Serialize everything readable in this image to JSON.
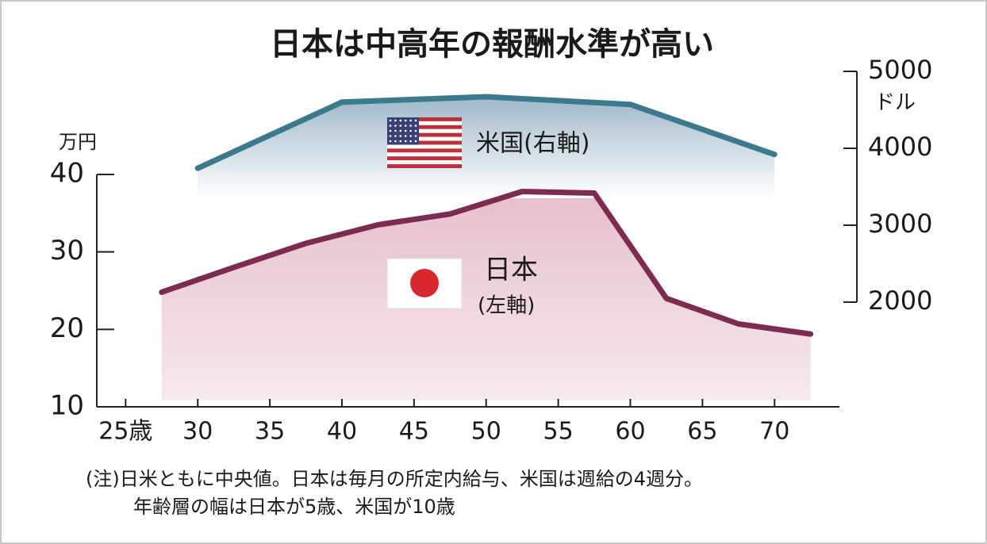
{
  "chart_data": {
    "type": "line",
    "title": "日本は中高年の報酬水準が高い",
    "y_unit": "万円",
    "y2_unit": "ドル",
    "xlim": [
      23,
      74.5
    ],
    "xticks": [
      {
        "value": 25,
        "label": "25歳"
      },
      30,
      35,
      40,
      45,
      50,
      55,
      60,
      65,
      70
    ],
    "ylim": [
      10,
      40
    ],
    "yticks": [
      10,
      20,
      30,
      40
    ],
    "y2lim": [
      2000,
      5000
    ],
    "y2ticks": [
      2000,
      3000,
      4000,
      5000
    ],
    "series": [
      {
        "name": "日本",
        "axis_note": "(左軸)",
        "color": "#7e2b52",
        "x": [
          27.5,
          32.5,
          37.5,
          42.5,
          47.5,
          52.5,
          57.5,
          62.5,
          67.5,
          72.5
        ],
        "values": [
          24.8,
          28.0,
          31.1,
          33.5,
          34.9,
          37.8,
          37.6,
          24.0,
          20.7,
          19.4
        ]
      },
      {
        "name": "米国(右軸)",
        "axis": "y2",
        "color": "#3a7a8c",
        "x": [
          30,
          40,
          50,
          60,
          70
        ],
        "values": [
          3740,
          4600,
          4670,
          4570,
          3920
        ]
      }
    ],
    "notes": [
      "(注)日米ともに中央値。日本は毎月の所定内給与、米国は週給の4週分。",
      "年齢層の幅は日本が5歳、米国が10歳"
    ]
  }
}
